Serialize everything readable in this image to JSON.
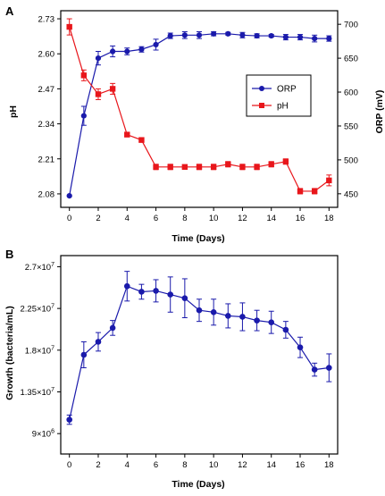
{
  "colors": {
    "orp": "#1a1aab",
    "ph": "#e8161b",
    "growth": "#1a1aab",
    "axis": "#000000"
  },
  "chart_data": [
    {
      "panel": "A",
      "type": "line",
      "xlabel": "Time (Days)",
      "ylabel_left": "pH",
      "ylabel_right": "ORP (mV)",
      "x": [
        0,
        1,
        2,
        3,
        4,
        5,
        6,
        7,
        8,
        9,
        10,
        11,
        12,
        13,
        14,
        15,
        16,
        17,
        18
      ],
      "xticks": [
        0,
        2,
        4,
        6,
        8,
        10,
        12,
        14,
        16,
        18
      ],
      "xlim": [
        -0.6,
        18.6
      ],
      "y_left_ticks": [
        "2.08",
        "2.21",
        "2.34",
        "2.47",
        "2.60",
        "2.73"
      ],
      "y_left_lim": [
        2.03,
        2.76
      ],
      "y_right_ticks": [
        "450",
        "500",
        "550",
        "600",
        "650",
        "700"
      ],
      "y_right_lim": [
        430,
        720
      ],
      "legend": "center-right",
      "series": [
        {
          "name": "ORP",
          "axis": "right",
          "marker": "circle",
          "values": [
            447,
            565,
            650,
            660,
            660,
            663,
            670,
            683,
            684,
            684,
            686,
            686,
            684,
            683,
            683,
            681,
            681,
            679,
            679
          ],
          "errors": [
            0,
            14,
            10,
            8,
            5,
            4,
            8,
            4,
            5,
            5,
            3,
            2,
            4,
            3,
            2,
            4,
            4,
            5,
            4
          ]
        },
        {
          "name": "pH",
          "axis": "left",
          "marker": "square",
          "values": [
            2.7,
            2.52,
            2.45,
            2.47,
            2.3,
            2.28,
            2.18,
            2.18,
            2.18,
            2.18,
            2.18,
            2.19,
            2.18,
            2.18,
            2.19,
            2.2,
            2.09,
            2.09,
            2.13
          ],
          "errors": [
            0.03,
            0.02,
            0.02,
            0.02,
            0.005,
            0.005,
            0.01,
            0.01,
            0.005,
            0.01,
            0.01,
            0.01,
            0.01,
            0.01,
            0.01,
            0.01,
            0.01,
            0.01,
            0.02
          ]
        }
      ]
    },
    {
      "panel": "B",
      "type": "line",
      "xlabel": "Time (Days)",
      "ylabel": "Growth (bacteria/mL)",
      "x": [
        0,
        1,
        2,
        3,
        4,
        5,
        6,
        7,
        8,
        9,
        10,
        11,
        12,
        13,
        14,
        15,
        16,
        17,
        18
      ],
      "xticks": [
        0,
        2,
        4,
        6,
        8,
        10,
        12,
        14,
        16,
        18
      ],
      "xlim": [
        -0.6,
        18.6
      ],
      "y_ticks": [
        9000000,
        13500000,
        18000000,
        22500000,
        27000000
      ],
      "y_tick_mantissas": [
        "9",
        "1.35",
        "1.8",
        "2.25",
        "2.7"
      ],
      "y_tick_exponents": [
        "6",
        "7",
        "7",
        "7",
        "7"
      ],
      "ylim": [
        6800000,
        28200000
      ],
      "series": [
        {
          "marker": "circle",
          "values": [
            10500000,
            17500000,
            18900000,
            20400000,
            24900000,
            24300000,
            24400000,
            24000000,
            23600000,
            22300000,
            22100000,
            21700000,
            21600000,
            21200000,
            21000000,
            20200000,
            18300000,
            15900000,
            16100000
          ],
          "errors": [
            500000,
            1400000,
            1000000,
            800000,
            1600000,
            800000,
            1200000,
            1900000,
            2100000,
            1200000,
            1400000,
            1300000,
            1500000,
            1100000,
            1200000,
            900000,
            1100000,
            700000,
            1500000
          ]
        }
      ]
    }
  ]
}
